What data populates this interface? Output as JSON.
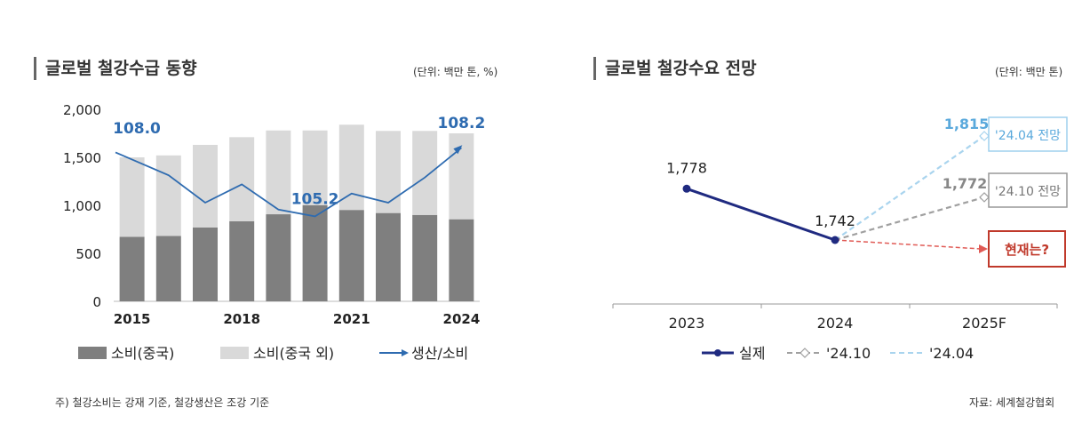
{
  "left_panel": {
    "title": "글로벌 철강수급 동향",
    "unit": "(단위: 백만 톤, %)"
  },
  "right_panel": {
    "title": "글로벌 철강수요 전망",
    "unit": "(단위: 백만 톤)"
  },
  "footnote_left": "주) 철강소비는 강재 기준, 철강생산은 조강 기준",
  "footnote_right": "자료: 세계철강협회",
  "colors": {
    "china_bar": "#7f7f7f",
    "other_bar": "#d9d9d9",
    "ratio_line": "#2e6bb0",
    "actual_line": "#1f2a80",
    "forecast_oct": "#a0a0a0",
    "forecast_apr": "#a9d4ee",
    "current_arrow": "#e05a55"
  },
  "chart_data": [
    {
      "type": "bar",
      "stacked": true,
      "categories": [
        "2015",
        "2016",
        "2017",
        "2018",
        "2019",
        "2020",
        "2021",
        "2022",
        "2023",
        "2024"
      ],
      "x_tick_labels": [
        "2015",
        "2018",
        "2021",
        "2024"
      ],
      "series": [
        {
          "name": "소비(중국)",
          "values": [
            672,
            681,
            770,
            835,
            907,
            1000,
            952,
            920,
            900,
            855
          ]
        },
        {
          "name": "소비(중국 외)",
          "values": [
            828,
            839,
            860,
            875,
            873,
            780,
            888,
            855,
            875,
            895
          ]
        }
      ],
      "secondary_series": {
        "name": "생산/소비",
        "type": "line",
        "values": [
          108.0,
          107.0,
          105.8,
          106.6,
          105.5,
          105.2,
          106.2,
          105.8,
          106.9,
          108.2
        ],
        "labels": [
          {
            "index": 0,
            "text": "108.0"
          },
          {
            "index": 5,
            "text": "105.2"
          },
          {
            "index": 9,
            "text": "108.2"
          }
        ]
      },
      "y_ticks": [
        "2,000",
        "1,500",
        "1,000",
        "500",
        "0"
      ],
      "ylim": [
        0,
        2000
      ],
      "legend": [
        "소비(중국)",
        "소비(중국 외)",
        "생산/소비"
      ],
      "legend_position": "bottom"
    },
    {
      "type": "line",
      "categories": [
        "2023",
        "2024",
        "2025F"
      ],
      "series": [
        {
          "name": "실제",
          "values": [
            1778,
            1742,
            null
          ],
          "labels": [
            "1,778",
            "1,742",
            ""
          ]
        },
        {
          "name": "'24.10",
          "values": [
            null,
            1742,
            1772
          ],
          "labels": [
            "",
            "",
            "1,772"
          ]
        },
        {
          "name": "'24.04",
          "values": [
            null,
            1742,
            1815
          ],
          "labels": [
            "",
            "",
            "1,815"
          ]
        }
      ],
      "annotations": [
        "'24.04 전망",
        "'24.10 전망",
        "현재는?"
      ],
      "legend": [
        "실제",
        "'24.10",
        "'24.04"
      ],
      "legend_position": "bottom",
      "ylim": [
        1600,
        1850
      ]
    }
  ]
}
